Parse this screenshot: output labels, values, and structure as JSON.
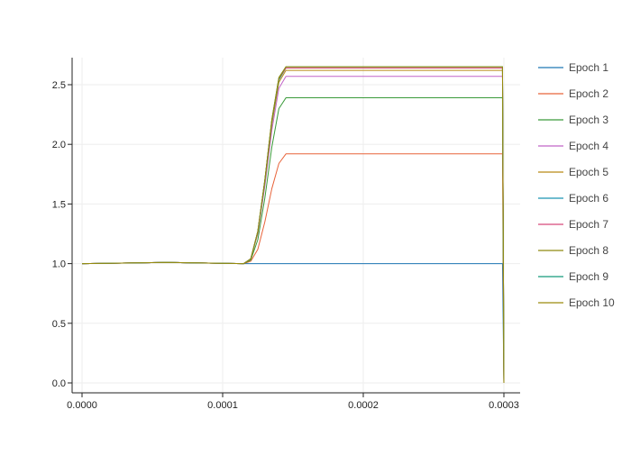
{
  "chart_data": {
    "type": "line",
    "title": "",
    "xlabel": "",
    "ylabel": "",
    "xlim": [
      -0.0,
      0.0003
    ],
    "ylim": [
      -0.05,
      2.72
    ],
    "grid": true,
    "legend_position": "right",
    "x_ticks": [
      {
        "value": 0.0,
        "label": "0.0000"
      },
      {
        "value": 0.0001,
        "label": "0.0001"
      },
      {
        "value": 0.0002,
        "label": "0.0002"
      },
      {
        "value": 0.0003,
        "label": "0.0003"
      }
    ],
    "y_ticks": [
      {
        "value": 0.0,
        "label": "0.0"
      },
      {
        "value": 0.5,
        "label": "0.5"
      },
      {
        "value": 1.0,
        "label": "1.0"
      },
      {
        "value": 1.5,
        "label": "1.5"
      },
      {
        "value": 2.0,
        "label": "2.0"
      },
      {
        "value": 2.5,
        "label": "2.5"
      }
    ],
    "series": [
      {
        "name": "Epoch 1",
        "color": "#1f77b4",
        "x": [
          0.0,
          6e-05,
          0.000115,
          0.000299,
          0.0003
        ],
        "y": [
          1.0,
          1.01,
          1.0,
          1.0,
          0.0
        ]
      },
      {
        "name": "Epoch 2",
        "color": "#e8633a",
        "x": [
          0.0,
          6e-05,
          0.000115,
          0.00012,
          0.000125,
          0.00013,
          0.000135,
          0.00014,
          0.000145,
          0.00015,
          0.000299,
          0.0003
        ],
        "y": [
          1.0,
          1.01,
          1.0,
          1.02,
          1.12,
          1.35,
          1.63,
          1.84,
          1.92,
          1.92,
          1.92,
          0.0
        ]
      },
      {
        "name": "Epoch 3",
        "color": "#3a9a3a",
        "x": [
          0.0,
          6e-05,
          0.000115,
          0.00012,
          0.000125,
          0.00013,
          0.000135,
          0.00014,
          0.000145,
          0.00015,
          0.000299,
          0.0003
        ],
        "y": [
          1.0,
          1.01,
          1.0,
          1.03,
          1.2,
          1.55,
          1.98,
          2.3,
          2.39,
          2.39,
          2.39,
          0.0
        ]
      },
      {
        "name": "Epoch 4",
        "color": "#c164c8",
        "x": [
          0.0,
          6e-05,
          0.000115,
          0.00012,
          0.000125,
          0.00013,
          0.000135,
          0.00014,
          0.000145,
          0.00015,
          0.000299,
          0.0003
        ],
        "y": [
          1.0,
          1.01,
          1.0,
          1.04,
          1.25,
          1.65,
          2.12,
          2.47,
          2.57,
          2.57,
          2.57,
          0.0
        ]
      },
      {
        "name": "Epoch 5",
        "color": "#b98a14",
        "x": [
          0.0,
          6e-05,
          0.000115,
          0.00012,
          0.000125,
          0.00013,
          0.000135,
          0.00014,
          0.000145,
          0.00015,
          0.000299,
          0.0003
        ],
        "y": [
          1.0,
          1.01,
          1.0,
          1.04,
          1.26,
          1.68,
          2.17,
          2.52,
          2.62,
          2.62,
          2.62,
          0.0
        ]
      },
      {
        "name": "Epoch 6",
        "color": "#1a94b2",
        "x": [
          0.0,
          6e-05,
          0.000115,
          0.00012,
          0.000125,
          0.00013,
          0.000135,
          0.00014,
          0.000145,
          0.00015,
          0.000299,
          0.0003
        ],
        "y": [
          1.0,
          1.01,
          1.0,
          1.04,
          1.27,
          1.69,
          2.19,
          2.54,
          2.64,
          2.64,
          2.64,
          0.0
        ]
      },
      {
        "name": "Epoch 7",
        "color": "#d6497a",
        "x": [
          0.0,
          6e-05,
          0.000115,
          0.00012,
          0.000125,
          0.00013,
          0.000135,
          0.00014,
          0.000145,
          0.00015,
          0.000299,
          0.0003
        ],
        "y": [
          1.0,
          1.01,
          1.0,
          1.04,
          1.27,
          1.7,
          2.2,
          2.55,
          2.64,
          2.64,
          2.64,
          0.0
        ]
      },
      {
        "name": "Epoch 8",
        "color": "#8f8a10",
        "x": [
          0.0,
          6e-05,
          0.000115,
          0.00012,
          0.000125,
          0.00013,
          0.000135,
          0.00014,
          0.000145,
          0.00015,
          0.000299,
          0.0003
        ],
        "y": [
          1.0,
          1.01,
          1.0,
          1.04,
          1.27,
          1.7,
          2.2,
          2.55,
          2.65,
          2.65,
          2.65,
          0.0
        ]
      },
      {
        "name": "Epoch 9",
        "color": "#149a7a",
        "x": [
          0.0,
          6e-05,
          0.000115,
          0.00012,
          0.000125,
          0.00013,
          0.000135,
          0.00014,
          0.000145,
          0.00015,
          0.000299,
          0.0003
        ],
        "y": [
          1.0,
          1.01,
          1.0,
          1.04,
          1.27,
          1.7,
          2.21,
          2.56,
          2.65,
          2.65,
          2.65,
          0.0
        ]
      },
      {
        "name": "Epoch 10",
        "color": "#9a8a0c",
        "x": [
          0.0,
          6e-05,
          0.000115,
          0.00012,
          0.000125,
          0.00013,
          0.000135,
          0.00014,
          0.000145,
          0.00015,
          0.000299,
          0.0003
        ],
        "y": [
          1.0,
          1.01,
          1.0,
          1.04,
          1.27,
          1.7,
          2.21,
          2.56,
          2.65,
          2.65,
          2.65,
          0.0
        ]
      }
    ]
  }
}
